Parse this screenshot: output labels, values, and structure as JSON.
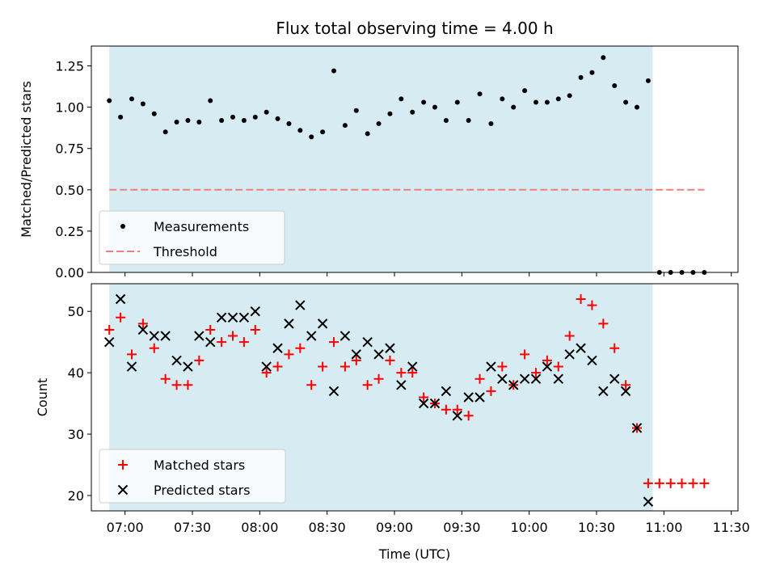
{
  "chart_data": [
    {
      "type": "scatter",
      "title": "Flux total observing time = 4.00 h",
      "xlabel": "",
      "ylabel": "Matched/Predicted stars",
      "xlim": [
        "06:45",
        "11:33"
      ],
      "ylim": [
        0,
        1.37
      ],
      "y_ticks": [
        "0.00",
        "0.25",
        "0.50",
        "0.75",
        "1.00",
        "1.25"
      ],
      "shaded_span": {
        "start": "06:53",
        "end": "10:55",
        "color": "#add8e6"
      },
      "legend_position": "lower left",
      "series": [
        {
          "name": "Measurements",
          "marker": "dot",
          "color": "#000000",
          "x": [
            "06:53",
            "06:58",
            "07:03",
            "07:08",
            "07:13",
            "07:18",
            "07:23",
            "07:28",
            "07:33",
            "07:38",
            "07:43",
            "07:48",
            "07:53",
            "07:58",
            "08:03",
            "08:08",
            "08:13",
            "08:18",
            "08:23",
            "08:28",
            "08:33",
            "08:38",
            "08:43",
            "08:48",
            "08:53",
            "08:58",
            "09:03",
            "09:08",
            "09:13",
            "09:18",
            "09:23",
            "09:28",
            "09:33",
            "09:38",
            "09:43",
            "09:48",
            "09:53",
            "09:58",
            "10:03",
            "10:08",
            "10:13",
            "10:18",
            "10:23",
            "10:28",
            "10:33",
            "10:38",
            "10:43",
            "10:48",
            "10:53",
            "10:58",
            "11:03",
            "11:08",
            "11:13",
            "11:18"
          ],
          "y": [
            1.04,
            0.94,
            1.05,
            1.02,
            0.96,
            0.85,
            0.91,
            0.92,
            0.91,
            1.04,
            0.92,
            0.94,
            0.92,
            0.94,
            0.97,
            0.93,
            0.9,
            0.86,
            0.82,
            0.85,
            1.22,
            0.89,
            0.98,
            0.84,
            0.9,
            0.96,
            1.05,
            0.97,
            1.03,
            1.0,
            0.92,
            1.03,
            0.92,
            1.08,
            0.9,
            1.05,
            1.0,
            1.1,
            1.03,
            1.03,
            1.05,
            1.07,
            1.18,
            1.21,
            1.3,
            1.13,
            1.03,
            1.0,
            1.16,
            0.0,
            0.0,
            0.0,
            0.0,
            0.0
          ]
        },
        {
          "name": "Threshold",
          "marker": "dashed-line",
          "color": "#f08080",
          "x": [
            "06:53",
            "11:18"
          ],
          "y": [
            0.5,
            0.5
          ]
        }
      ]
    },
    {
      "type": "scatter",
      "title": "",
      "xlabel": "Time (UTC)",
      "ylabel": "Count",
      "xlim": [
        "06:45",
        "11:33"
      ],
      "ylim": [
        17.5,
        54.5
      ],
      "y_ticks": [
        "20",
        "30",
        "40",
        "50"
      ],
      "x_ticks": [
        "07:00",
        "07:30",
        "08:00",
        "08:30",
        "09:00",
        "09:30",
        "10:00",
        "10:30",
        "11:00",
        "11:30"
      ],
      "shaded_span": {
        "start": "06:53",
        "end": "10:55",
        "color": "#add8e6"
      },
      "legend_position": "lower left",
      "series": [
        {
          "name": "Matched stars",
          "marker": "plus",
          "color": "#ff0000",
          "x": [
            "06:53",
            "06:58",
            "07:03",
            "07:08",
            "07:13",
            "07:18",
            "07:23",
            "07:28",
            "07:33",
            "07:38",
            "07:43",
            "07:48",
            "07:53",
            "07:58",
            "08:03",
            "08:08",
            "08:13",
            "08:18",
            "08:23",
            "08:28",
            "08:33",
            "08:38",
            "08:43",
            "08:48",
            "08:53",
            "08:58",
            "09:03",
            "09:08",
            "09:13",
            "09:18",
            "09:23",
            "09:28",
            "09:33",
            "09:38",
            "09:43",
            "09:48",
            "09:53",
            "09:58",
            "10:03",
            "10:08",
            "10:13",
            "10:18",
            "10:23",
            "10:28",
            "10:33",
            "10:38",
            "10:43",
            "10:48",
            "10:53",
            "10:58",
            "11:03",
            "11:08",
            "11:13",
            "11:18"
          ],
          "y": [
            47,
            49,
            43,
            48,
            44,
            39,
            38,
            38,
            42,
            47,
            45,
            46,
            45,
            47,
            40,
            41,
            43,
            44,
            38,
            41,
            45,
            41,
            42,
            38,
            39,
            42,
            40,
            40,
            36,
            35,
            34,
            34,
            33,
            39,
            37,
            41,
            38,
            43,
            40,
            42,
            41,
            46,
            52,
            51,
            48,
            44,
            38,
            31,
            22,
            22,
            22,
            22,
            22,
            22
          ]
        },
        {
          "name": "Predicted stars",
          "marker": "x",
          "color": "#000000",
          "x": [
            "06:53",
            "06:58",
            "07:03",
            "07:08",
            "07:13",
            "07:18",
            "07:23",
            "07:28",
            "07:33",
            "07:38",
            "07:43",
            "07:48",
            "07:53",
            "07:58",
            "08:03",
            "08:08",
            "08:13",
            "08:18",
            "08:23",
            "08:28",
            "08:33",
            "08:38",
            "08:43",
            "08:48",
            "08:53",
            "08:58",
            "09:03",
            "09:08",
            "09:13",
            "09:18",
            "09:23",
            "09:28",
            "09:33",
            "09:38",
            "09:43",
            "09:48",
            "09:53",
            "09:58",
            "10:03",
            "10:08",
            "10:13",
            "10:18",
            "10:23",
            "10:28",
            "10:33",
            "10:38",
            "10:43",
            "10:48",
            "10:53"
          ],
          "y": [
            45,
            52,
            41,
            47,
            46,
            46,
            42,
            41,
            46,
            45,
            49,
            49,
            49,
            50,
            41,
            44,
            48,
            51,
            46,
            48,
            37,
            46,
            43,
            45,
            43,
            44,
            38,
            41,
            35,
            35,
            37,
            33,
            36,
            36,
            41,
            39,
            38,
            39,
            39,
            41,
            39,
            43,
            44,
            42,
            37,
            39,
            37,
            31,
            19
          ]
        }
      ]
    }
  ]
}
